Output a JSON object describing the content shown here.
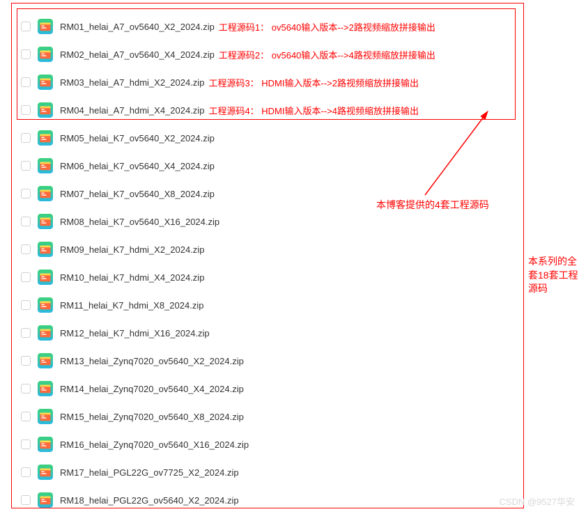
{
  "iconColors": {
    "bg": "#3bd27a",
    "bgGrad": "#2bb8e0",
    "inner": "#ff6a3d",
    "accent": "#ffd94a"
  },
  "arrowColor": "#ff0000",
  "sideLabel1": "本博客提供的4套工程源码",
  "sideLabel2": "本系列的全套18套工程源码",
  "watermark": "CSDN @9527华安",
  "files": [
    {
      "name": "RM01_helai_A7_ov5640_X2_2024.zip",
      "annotation": "工程源码1： ov5640输入版本-->2路视频缩放拼接输出"
    },
    {
      "name": "RM02_helai_A7_ov5640_X4_2024.zip",
      "annotation": "工程源码2： ov5640输入版本-->4路视频缩放拼接输出"
    },
    {
      "name": "RM03_helai_A7_hdmi_X2_2024.zip",
      "annotation": "工程源码3： HDMI输入版本-->2路视频缩放拼接输出"
    },
    {
      "name": "RM04_helai_A7_hdmi_X4_2024.zip",
      "annotation": "工程源码4： HDMI输入版本-->4路视频缩放拼接输出"
    },
    {
      "name": "RM05_helai_K7_ov5640_X2_2024.zip"
    },
    {
      "name": "RM06_helai_K7_ov5640_X4_2024.zip"
    },
    {
      "name": "RM07_helai_K7_ov5640_X8_2024.zip"
    },
    {
      "name": "RM08_helai_K7_ov5640_X16_2024.zip"
    },
    {
      "name": "RM09_helai_K7_hdmi_X2_2024.zip"
    },
    {
      "name": "RM10_helai_K7_hdmi_X4_2024.zip"
    },
    {
      "name": "RM11_helai_K7_hdmi_X8_2024.zip"
    },
    {
      "name": "RM12_helai_K7_hdmi_X16_2024.zip"
    },
    {
      "name": "RM13_helai_Zynq7020_ov5640_X2_2024.zip"
    },
    {
      "name": "RM14_helai_Zynq7020_ov5640_X4_2024.zip"
    },
    {
      "name": "RM15_helai_Zynq7020_ov5640_X8_2024.zip"
    },
    {
      "name": "RM16_helai_Zynq7020_ov5640_X16_2024.zip"
    },
    {
      "name": "RM17_helai_PGL22G_ov7725_X2_2024.zip"
    },
    {
      "name": "RM18_helai_PGL22G_ov5640_X2_2024.zip"
    }
  ]
}
